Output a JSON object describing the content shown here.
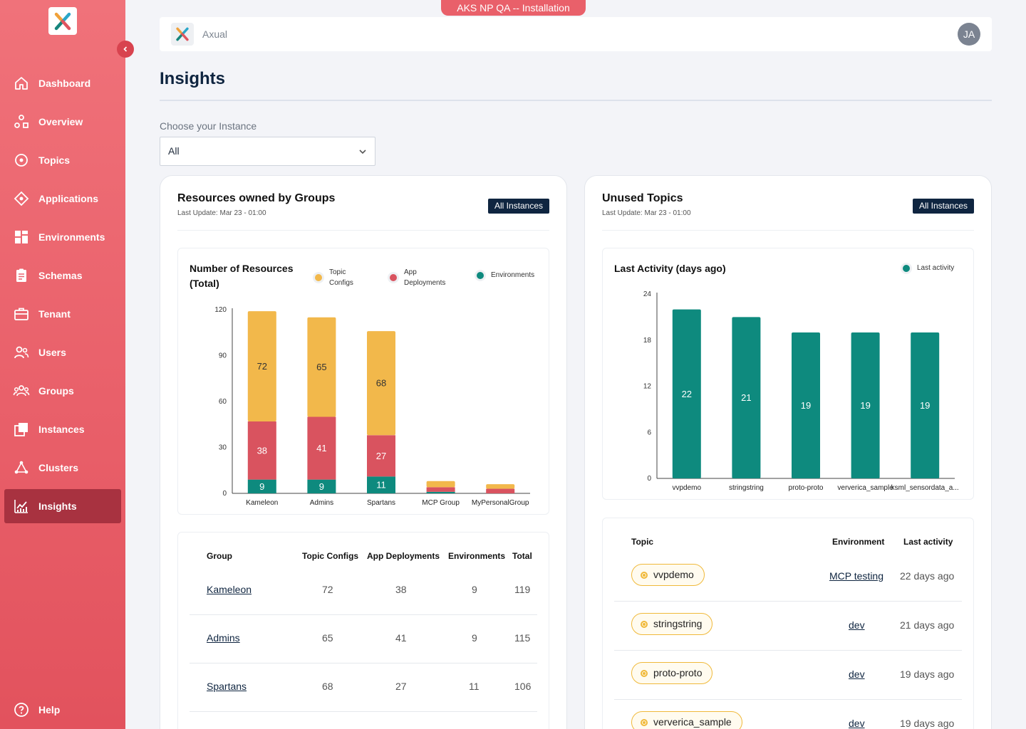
{
  "env_banner": "AKS NP QA -- Installation",
  "header": {
    "brand": "Axual",
    "avatar_initials": "JA"
  },
  "sidebar": {
    "items": [
      {
        "label": "Dashboard",
        "icon": "home-icon"
      },
      {
        "label": "Overview",
        "icon": "overview-icon"
      },
      {
        "label": "Topics",
        "icon": "topic-icon"
      },
      {
        "label": "Applications",
        "icon": "application-icon"
      },
      {
        "label": "Environments",
        "icon": "grid-icon"
      },
      {
        "label": "Schemas",
        "icon": "clipboard-icon"
      },
      {
        "label": "Tenant",
        "icon": "briefcase-icon"
      },
      {
        "label": "Users",
        "icon": "users-icon"
      },
      {
        "label": "Groups",
        "icon": "groups-icon"
      },
      {
        "label": "Instances",
        "icon": "instances-icon"
      },
      {
        "label": "Clusters",
        "icon": "clusters-icon"
      },
      {
        "label": "Insights",
        "icon": "insights-icon",
        "active": true
      }
    ],
    "help": "Help"
  },
  "page": {
    "title": "Insights",
    "instance_label": "Choose your Instance",
    "instance_value": "All"
  },
  "colors": {
    "topic_configs": "#f2b84b",
    "app_deployments": "#d9535f",
    "environments": "#0e8a7e",
    "accent": "#0f2540"
  },
  "left_card": {
    "title": "Resources owned by Groups",
    "last_update": "Last Update: Mar 23 - 01:00",
    "badge": "All Instances",
    "chart_title_1": "Number of Resources",
    "chart_title_2": "(Total)",
    "legend": {
      "topic_1": "Topic",
      "topic_2": "Configs",
      "app_1": "App",
      "app_2": "Deployments",
      "env": "Environments"
    },
    "table": {
      "headers": [
        "Group",
        "Topic Configs",
        "App Deployments",
        "Environments",
        "Total"
      ],
      "rows": [
        [
          "Kameleon",
          "72",
          "38",
          "9",
          "119"
        ],
        [
          "Admins",
          "65",
          "41",
          "9",
          "115"
        ],
        [
          "Spartans",
          "68",
          "27",
          "11",
          "106"
        ]
      ]
    }
  },
  "right_card": {
    "title": "Unused Topics",
    "last_update": "Last Update: Mar 23 - 01:00",
    "badge": "All Instances",
    "chart_title": "Last Activity (days ago)",
    "legend": "Last activity",
    "table": {
      "headers": [
        "Topic",
        "Environment",
        "Last activity"
      ],
      "rows": [
        [
          "vvpdemo",
          "MCP testing",
          "22 days ago"
        ],
        [
          "stringstring",
          "dev",
          "21 days ago"
        ],
        [
          "proto-proto",
          "dev",
          "19 days ago"
        ],
        [
          "ververica_sample",
          "dev",
          "19 days ago"
        ]
      ]
    }
  },
  "chart_data": [
    {
      "type": "bar",
      "stacked": true,
      "title": "Number of Resources (Total)",
      "categories": [
        "Kameleon",
        "Admins",
        "Spartans",
        "MCP Group",
        "MyPersonalGroup"
      ],
      "series": [
        {
          "name": "Environments",
          "values": [
            9,
            9,
            11,
            1,
            0
          ]
        },
        {
          "name": "App Deployments",
          "values": [
            38,
            41,
            27,
            3,
            3
          ]
        },
        {
          "name": "Topic Configs",
          "values": [
            72,
            65,
            68,
            4,
            3
          ]
        }
      ],
      "yticks": [
        "0",
        "30",
        "60",
        "90",
        "120"
      ],
      "ylim": [
        0,
        120
      ]
    },
    {
      "type": "bar",
      "title": "Last Activity (days ago)",
      "categories": [
        "vvpdemo",
        "stringstring",
        "proto-proto",
        "ververica_sample",
        "ksml_sensordata_a..."
      ],
      "series": [
        {
          "name": "Last activity",
          "values": [
            22,
            21,
            19,
            19,
            19
          ]
        }
      ],
      "yticks": [
        "0",
        "6",
        "12",
        "18",
        "24"
      ],
      "ylim": [
        0,
        24
      ]
    }
  ]
}
